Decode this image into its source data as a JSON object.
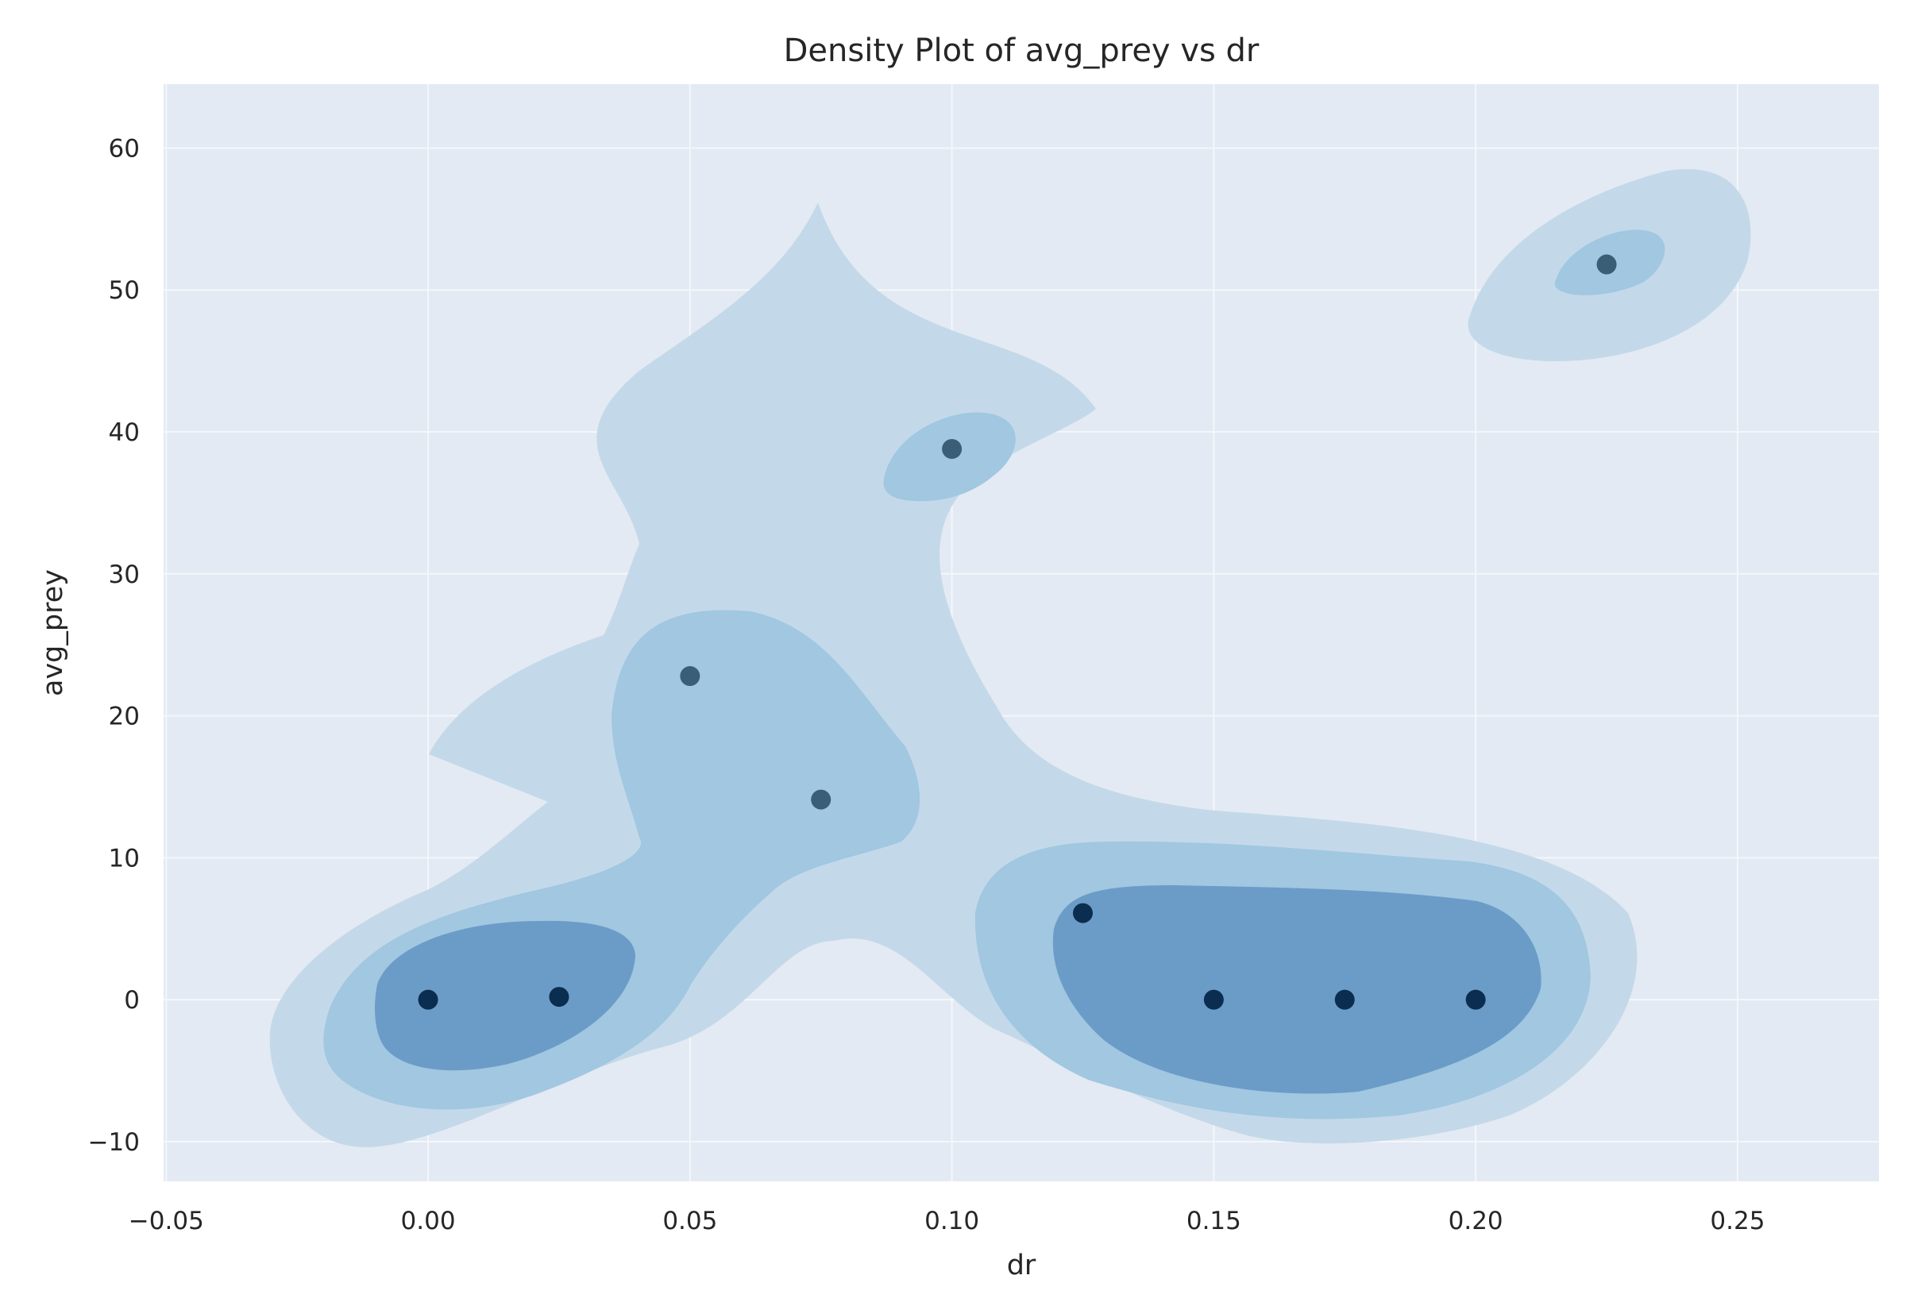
{
  "chart_data": {
    "type": "scatter",
    "title": "Density Plot of avg_prey vs dr",
    "xlabel": "dr",
    "ylabel": "avg_prey",
    "xlim": [
      -0.0505,
      0.277
    ],
    "ylim": [
      -12.8,
      64.5
    ],
    "x_ticks": [
      -0.05,
      0.0,
      0.05,
      0.1,
      0.15,
      0.2,
      0.25
    ],
    "x_tick_labels": [
      "−0.05",
      "0.00",
      "0.05",
      "0.10",
      "0.15",
      "0.20",
      "0.25"
    ],
    "y_ticks": [
      -10,
      0,
      10,
      20,
      30,
      40,
      50,
      60
    ],
    "y_tick_labels": [
      "−10",
      "0",
      "10",
      "20",
      "30",
      "40",
      "50",
      "60"
    ],
    "grid": true,
    "overlay": "kde-density-contours",
    "points": [
      {
        "x": 0.0,
        "y": 0.0
      },
      {
        "x": 0.025,
        "y": 0.2
      },
      {
        "x": 0.05,
        "y": 22.8
      },
      {
        "x": 0.075,
        "y": 14.1
      },
      {
        "x": 0.1,
        "y": 38.8
      },
      {
        "x": 0.125,
        "y": 6.1
      },
      {
        "x": 0.15,
        "y": 0.0
      },
      {
        "x": 0.175,
        "y": 0.0
      },
      {
        "x": 0.2,
        "y": 0.0
      },
      {
        "x": 0.225,
        "y": 51.8
      }
    ],
    "colors": {
      "background": "#e3eaf3",
      "grid": "#f4f7fb",
      "level1": "#c3d9e9",
      "level2": "#a1c7e1",
      "level3": "#6b9cc7",
      "point_dark": "#0b2d4f",
      "point_mid": "#3a5e75"
    }
  }
}
